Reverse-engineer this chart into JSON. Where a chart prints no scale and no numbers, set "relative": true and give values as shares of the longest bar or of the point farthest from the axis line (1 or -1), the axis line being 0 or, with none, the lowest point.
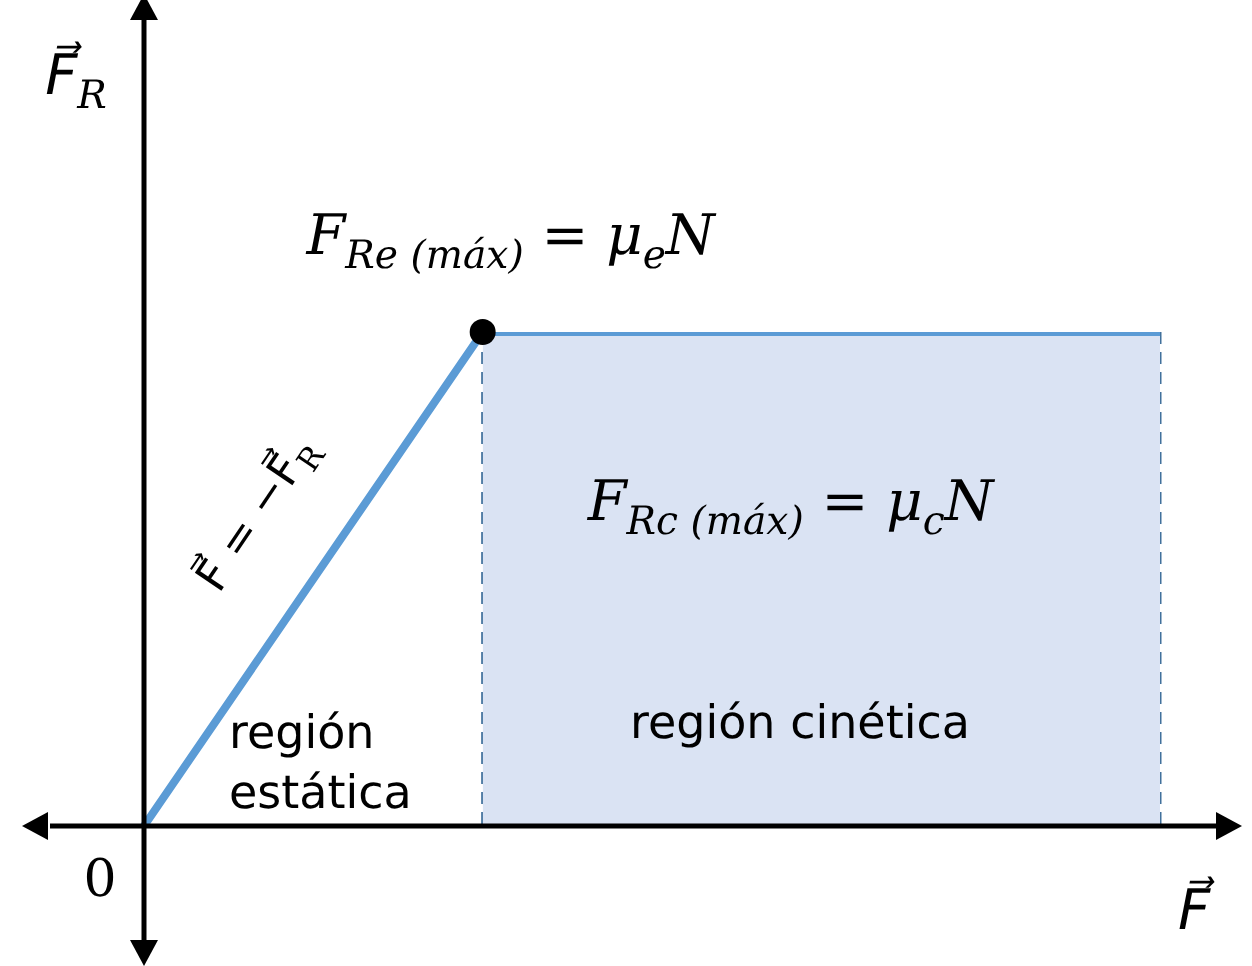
{
  "chart_data": {
    "type": "line",
    "relative": true,
    "legend": false,
    "xlabel": "F⃗",
    "ylabel": "F⃗$_{R}$",
    "categories": [
      null,
      null,
      null,
      null,
      null,
      null,
      null
    ],
    "series": [
      {
        "type": "area",
        "color": "#dae3f3",
        "line_style": "dashed",
        "values": [
          null,
          null,
          1,
          1,
          1,
          1,
          1
        ]
      },
      {
        "color": "#5b9bd5",
        "line_style": "solid",
        "values": [
          0,
          0.5,
          1,
          1,
          1,
          1,
          1
        ]
      }
    ],
    "annotations": [
      {
        "text": "F$_{Re (máx)}$ = μ$_{e}$N",
        "y": 1
      },
      "F$_{Rc (máx)}$ = μ$_{c}$N",
      "F⃗ = −F⃗$_{R}$",
      "región estática",
      "región cinética",
      "0"
    ]
  }
}
